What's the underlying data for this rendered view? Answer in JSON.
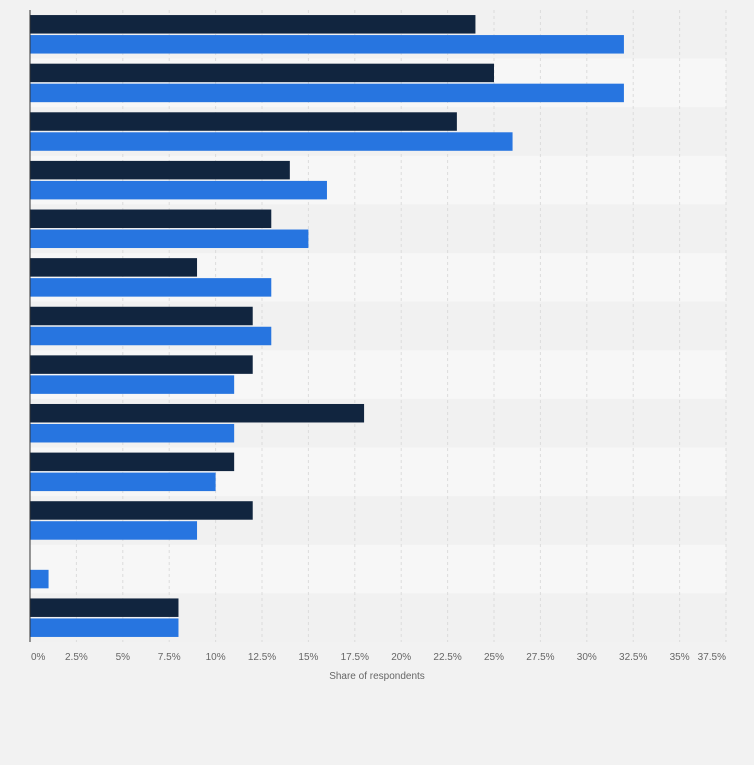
{
  "chart_data": {
    "type": "bar",
    "orientation": "horizontal",
    "categories": [
      "",
      "",
      "",
      "",
      "",
      "",
      "",
      "",
      "",
      "",
      "",
      "",
      ""
    ],
    "series": [
      {
        "color": "#11253f",
        "values": [
          24,
          25,
          23,
          14,
          13,
          9,
          12,
          12,
          18,
          11,
          12,
          0,
          8
        ]
      },
      {
        "color": "#2775e0",
        "values": [
          32,
          32,
          26,
          16,
          15,
          13,
          13,
          11,
          11,
          10,
          9,
          1,
          8
        ]
      }
    ],
    "x_axis": {
      "label": "Share of respondents",
      "range": [
        0,
        37.5
      ],
      "ticks": [
        0,
        2.5,
        5,
        7.5,
        10,
        12.5,
        15,
        17.5,
        20,
        22.5,
        25,
        27.5,
        30,
        32.5,
        35,
        37.5
      ],
      "tick_labels": [
        "0%",
        "2.5%",
        "5%",
        "7.5%",
        "10%",
        "12.5%",
        "15%",
        "17.5%",
        "20%",
        "22.5%",
        "25%",
        "27.5%",
        "30%",
        "32.5%",
        "35%",
        "37.5%"
      ]
    },
    "grid": true,
    "legend": "none",
    "colors": {
      "background": "#f2f2f2",
      "band_light": "#f7f7f7",
      "band_dark": "#f1f1f1",
      "grid": "#dcdcdc",
      "axis": "#333333",
      "tick_text": "#666666"
    }
  }
}
